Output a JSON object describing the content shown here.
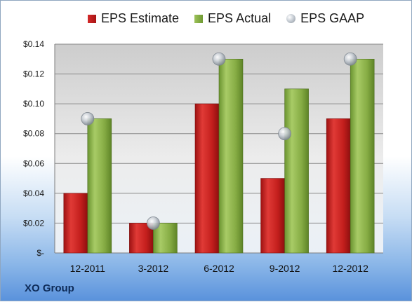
{
  "colors": {
    "estimate": "#c0201e",
    "actual": "#88ad45",
    "gaap": "#b9c0c8",
    "plot_band": "#c9c9c9"
  },
  "company": "XO Group",
  "legend": {
    "estimate": "EPS Estimate",
    "actual": "EPS Actual",
    "gaap": "EPS GAAP"
  },
  "chart_data": {
    "type": "bar",
    "title": "",
    "xlabel": "",
    "ylabel": "",
    "ylim": [
      0,
      0.14
    ],
    "yticks": [
      0,
      0.02,
      0.04,
      0.06,
      0.08,
      0.1,
      0.12,
      0.14
    ],
    "ytick_labels": [
      "$-",
      "$0.02",
      "$0.04",
      "$0.06",
      "$0.08",
      "$0.10",
      "$0.12",
      "$0.14"
    ],
    "grid": true,
    "legend_position": "top",
    "categories": [
      "12-2011",
      "3-2012",
      "6-2012",
      "9-2012",
      "12-2012"
    ],
    "series": [
      {
        "name": "EPS Estimate",
        "type": "bar",
        "values": [
          0.04,
          0.02,
          0.1,
          0.05,
          0.09
        ]
      },
      {
        "name": "EPS Actual",
        "type": "bar",
        "values": [
          0.09,
          0.02,
          0.13,
          0.11,
          0.13
        ]
      },
      {
        "name": "EPS GAAP",
        "type": "scatter",
        "values": [
          0.09,
          0.02,
          0.13,
          0.08,
          0.13
        ]
      }
    ]
  }
}
